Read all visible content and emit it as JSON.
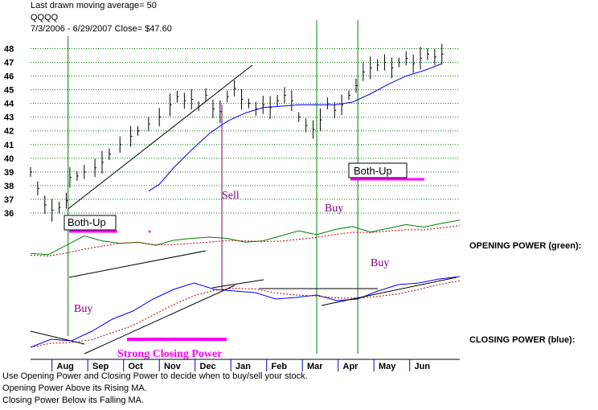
{
  "header": {
    "line1": "Last drawn moving average= 50",
    "line2": "QQQQ",
    "line3": "7/3/2006 - 6/29/2007     Close= $47.60"
  },
  "panel_labels": {
    "opening": "OPENING POWER (green):",
    "closing": "CLOSING POWER (blue):"
  },
  "notes": [
    "Use Opening Power and Closing Power to decide when to buy/sell your stock.",
    "Opening Power Above its Rising MA.",
    "Closing Power Below its Falling MA."
  ],
  "colors": {
    "price": "#000000",
    "ma": "#0000ff",
    "opening_power": "#008000",
    "closing_power": "#0000ff",
    "power_ma": "#c00000",
    "signal_lines": "#008000",
    "sell_line": "#800080",
    "annotation_purple": "#800080",
    "annotation_magenta": "#ff00ff",
    "grid": "#008000"
  },
  "chart_data": [
    {
      "type": "line",
      "title": "QQQQ",
      "panel": "price",
      "y_ticks": [
        36,
        37,
        38,
        39,
        40,
        41,
        42,
        43,
        44,
        45,
        46,
        47,
        48
      ],
      "ylim": [
        35,
        48.5
      ],
      "x_tick_labels": [
        "Aug",
        "Sep",
        "Oct",
        "Nov",
        "Dec",
        "Jan",
        "Feb",
        "Mar",
        "Apr",
        "May",
        "Jun"
      ],
      "x_month_index": [
        1,
        2,
        3,
        4,
        5,
        6,
        7,
        8,
        9,
        10,
        11
      ],
      "xlim": [
        0,
        12
      ],
      "grid": true,
      "close_points": [
        [
          0.0,
          39.0
        ],
        [
          0.2,
          37.8
        ],
        [
          0.4,
          36.6
        ],
        [
          0.6,
          36.2
        ],
        [
          0.8,
          36.4
        ],
        [
          1.0,
          36.9
        ],
        [
          1.1,
          38.6
        ],
        [
          1.3,
          38.7
        ],
        [
          1.5,
          39.0
        ],
        [
          1.8,
          39.3
        ],
        [
          2.0,
          39.7
        ],
        [
          2.2,
          40.3
        ],
        [
          2.5,
          41.0
        ],
        [
          2.8,
          41.6
        ],
        [
          3.0,
          42.0
        ],
        [
          3.3,
          42.5
        ],
        [
          3.6,
          43.0
        ],
        [
          3.9,
          43.9
        ],
        [
          4.1,
          44.5
        ],
        [
          4.3,
          44.2
        ],
        [
          4.5,
          44.3
        ],
        [
          4.7,
          43.8
        ],
        [
          4.9,
          44.6
        ],
        [
          5.1,
          43.6
        ],
        [
          5.3,
          43.4
        ],
        [
          5.5,
          44.5
        ],
        [
          5.7,
          45.1
        ],
        [
          5.9,
          44.3
        ],
        [
          6.1,
          44.0
        ],
        [
          6.3,
          43.6
        ],
        [
          6.5,
          43.9
        ],
        [
          6.7,
          43.7
        ],
        [
          6.9,
          44.2
        ],
        [
          7.1,
          44.6
        ],
        [
          7.3,
          44.2
        ],
        [
          7.5,
          43.0
        ],
        [
          7.7,
          42.4
        ],
        [
          7.9,
          42.1
        ],
        [
          8.1,
          42.8
        ],
        [
          8.3,
          44.0
        ],
        [
          8.5,
          43.5
        ],
        [
          8.7,
          43.9
        ],
        [
          8.9,
          44.6
        ],
        [
          9.1,
          45.3
        ],
        [
          9.3,
          46.3
        ],
        [
          9.5,
          46.6
        ],
        [
          9.7,
          46.8
        ],
        [
          9.9,
          47.0
        ],
        [
          10.1,
          46.6
        ],
        [
          10.3,
          47.0
        ],
        [
          10.5,
          47.3
        ],
        [
          10.7,
          46.9
        ],
        [
          10.9,
          47.3
        ],
        [
          11.1,
          47.6
        ],
        [
          11.3,
          47.4
        ],
        [
          11.5,
          47.6
        ]
      ],
      "ma_label": "Last drawn moving average= 50",
      "ma_points": [
        [
          3.3,
          37.6
        ],
        [
          3.6,
          38.1
        ],
        [
          4.0,
          39.3
        ],
        [
          4.5,
          40.6
        ],
        [
          5.0,
          41.8
        ],
        [
          5.5,
          42.7
        ],
        [
          6.0,
          43.3
        ],
        [
          6.5,
          43.7
        ],
        [
          7.0,
          43.8
        ],
        [
          7.5,
          43.9
        ],
        [
          8.0,
          43.9
        ],
        [
          8.5,
          43.9
        ],
        [
          9.0,
          44.1
        ],
        [
          9.5,
          44.7
        ],
        [
          10.0,
          45.4
        ],
        [
          10.5,
          46.0
        ],
        [
          11.0,
          46.4
        ],
        [
          11.5,
          46.9
        ]
      ],
      "annotations": [
        "Both-Up",
        "Both-Up",
        "Sell",
        "Buy"
      ]
    },
    {
      "type": "line",
      "panel": "opening_power",
      "series": [
        {
          "name": "OPENING POWER (green)",
          "values": [
            0.42,
            0.4,
            0.55,
            0.7,
            0.62,
            0.58,
            0.6,
            0.55,
            0.63,
            0.66,
            0.68,
            0.66,
            0.6,
            0.62,
            0.7,
            0.78,
            0.72,
            0.8,
            0.85,
            0.76,
            0.82,
            0.88,
            0.84,
            0.9,
            0.95
          ]
        }
      ],
      "annotations": [
        "Buy"
      ]
    },
    {
      "type": "line",
      "panel": "closing_power",
      "series": [
        {
          "name": "CLOSING POWER (blue)",
          "values": [
            0.1,
            0.2,
            0.18,
            0.3,
            0.45,
            0.55,
            0.7,
            0.82,
            0.9,
            0.82,
            0.8,
            0.78,
            0.7,
            0.72,
            0.75,
            0.68,
            0.7,
            0.8,
            0.88,
            0.9,
            0.95,
            0.98
          ]
        }
      ],
      "annotations": [
        "Buy",
        "Strong Closing Power"
      ]
    }
  ]
}
